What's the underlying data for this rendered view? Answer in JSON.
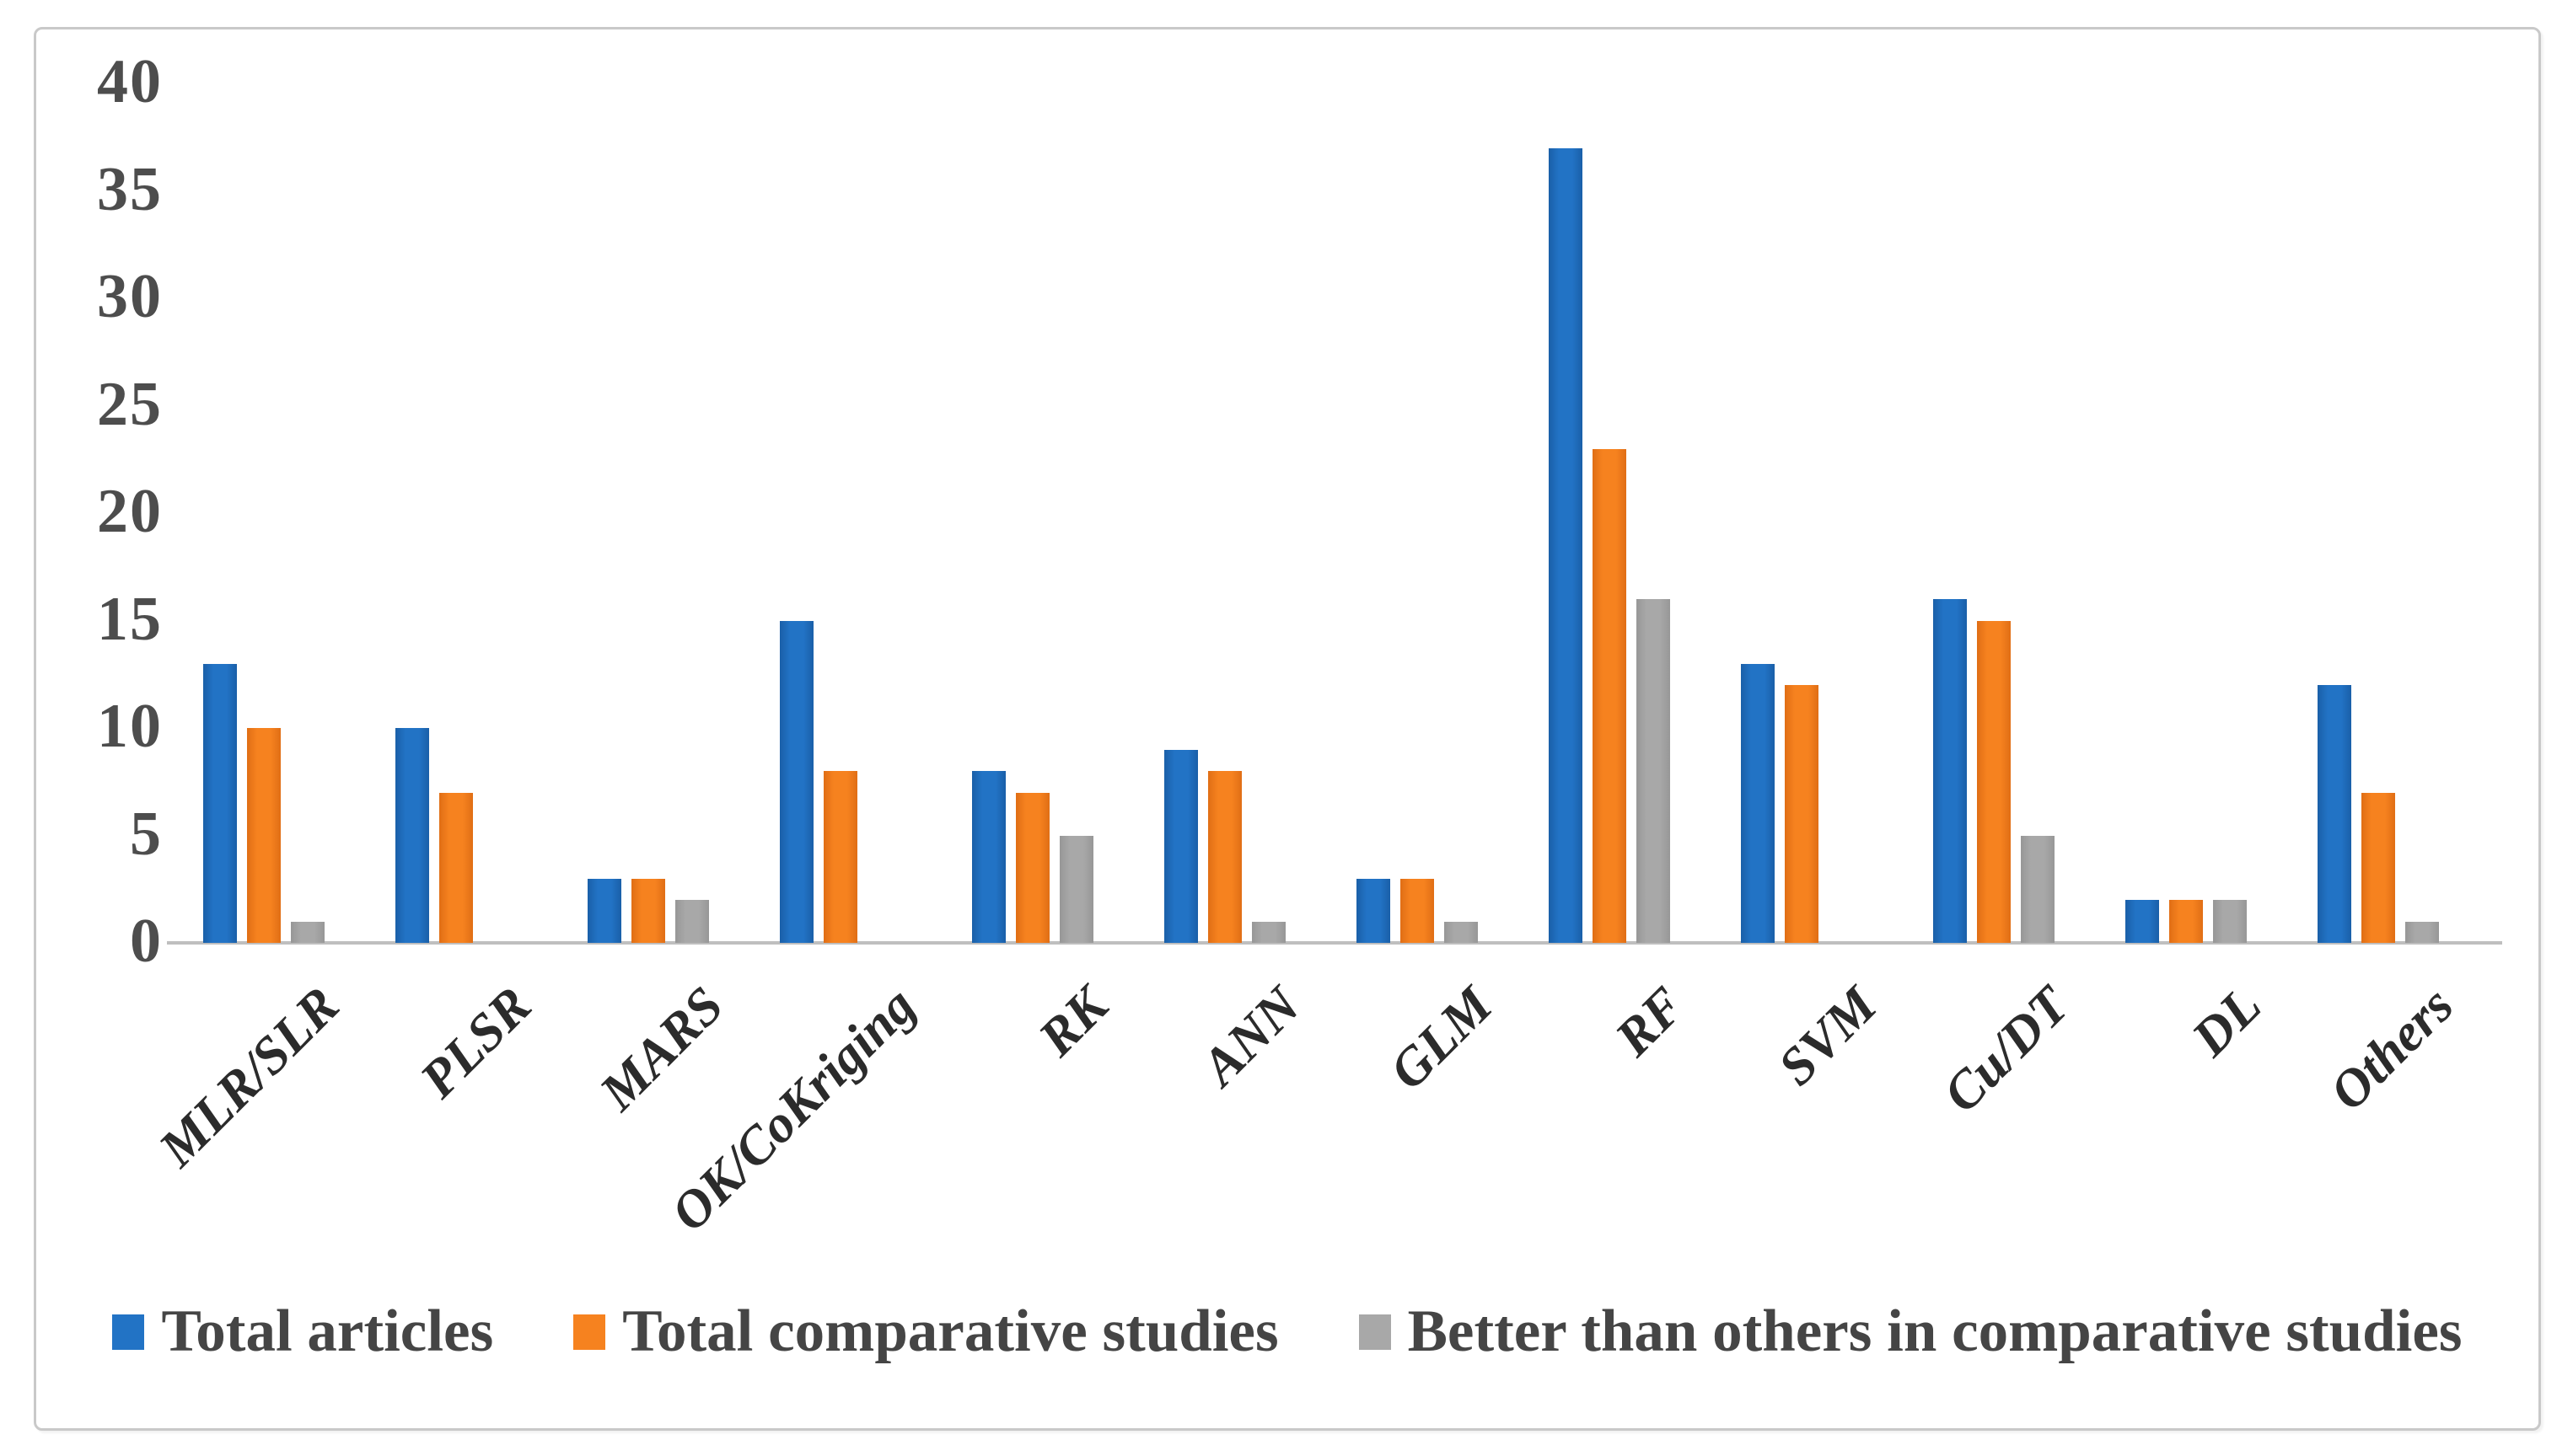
{
  "chart_data": {
    "type": "bar",
    "title": "",
    "xlabel": "",
    "ylabel": "",
    "categories": [
      "MLR/SLR",
      "PLSR",
      "MARS",
      "OK/CoKriging",
      "RK",
      "ANN",
      "GLM",
      "RF",
      "SVM",
      "Cu/DT",
      "DL",
      "Others"
    ],
    "series": [
      {
        "name": "Total articles",
        "color": "#2273c5",
        "color_edge": "#1a5fa8",
        "values": [
          13,
          10,
          3,
          15,
          8,
          9,
          3,
          37,
          13,
          16,
          2,
          12
        ]
      },
      {
        "name": "Total comparative studies",
        "color": "#f6821f",
        "color_edge": "#e06e15",
        "values": [
          10,
          7,
          3,
          8,
          7,
          8,
          3,
          23,
          12,
          15,
          2,
          7
        ]
      },
      {
        "name": "Better than others in comparative studies",
        "color": "#a8a8a8",
        "color_edge": "#979797",
        "values": [
          1,
          0,
          2,
          0,
          5,
          1,
          1,
          16,
          0,
          5,
          2,
          1
        ]
      }
    ],
    "y_axis": {
      "min": 0,
      "max": 40,
      "step": 5,
      "tick_labels": [
        "0",
        "5",
        "10",
        "15",
        "20",
        "25",
        "30",
        "35",
        "40"
      ]
    },
    "grid": false,
    "legend_position": "bottom",
    "axis_line_color": "#bfbfbf"
  }
}
